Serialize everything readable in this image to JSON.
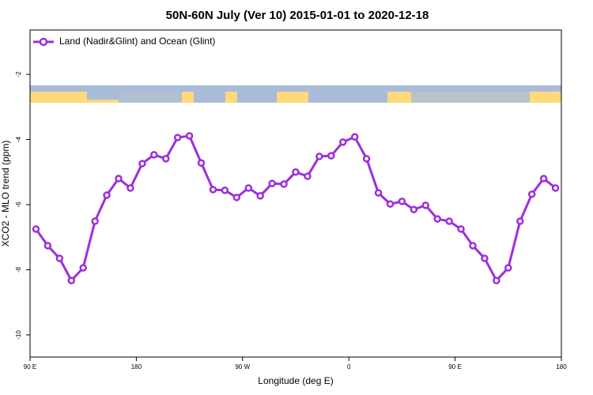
{
  "chart_data": {
    "type": "line",
    "title": "50N-60N July (Ver 10)   2015-01-01 to 2020-12-18",
    "x_label": "Longitude (deg E)",
    "y_label": "XCO2 - MLO trend (ppm)",
    "x": [
      95,
      105,
      115,
      125,
      135,
      145,
      155,
      165,
      175,
      185,
      195,
      205,
      215,
      225,
      235,
      245,
      255,
      265,
      275,
      285,
      295,
      305,
      315,
      325,
      335,
      345,
      355,
      365,
      375,
      385,
      395,
      405,
      415,
      425,
      435,
      445,
      455,
      465,
      475,
      485,
      495,
      505,
      515,
      525,
      535
    ],
    "series": [
      {
        "name": "Land (Nadir&Glint) and Ocean (Glint)",
        "color": "#9b30d9",
        "values": [
          -6.75,
          -7.26,
          -7.65,
          -8.33,
          -7.94,
          -6.51,
          -5.71,
          -5.2,
          -5.49,
          -4.74,
          -4.47,
          -4.59,
          -3.94,
          -3.89,
          -4.72,
          -5.54,
          -5.56,
          -5.78,
          -5.49,
          -5.73,
          -5.35,
          -5.37,
          -5.0,
          -5.13,
          -4.52,
          -4.5,
          -4.08,
          -3.92,
          -4.59,
          -5.64,
          -5.98,
          -5.9,
          -6.15,
          -6.02,
          -6.44,
          -6.51,
          -6.75,
          -7.26,
          -7.65,
          -8.33,
          -7.94,
          -6.51,
          -5.68,
          -5.2,
          -5.49
        ]
      }
    ],
    "xlim": [
      90,
      540
    ],
    "xticks": [
      {
        "value": 90,
        "label": "90 E"
      },
      {
        "value": 180,
        "label": "180"
      },
      {
        "value": 270,
        "label": "90 W"
      },
      {
        "value": 360,
        "label": "0"
      },
      {
        "value": 450,
        "label": "90 E"
      },
      {
        "value": 540,
        "label": "180"
      }
    ],
    "ylim": [
      -10.68,
      -0.64
    ],
    "yticks": [
      -2,
      -4,
      -6,
      -8,
      -10
    ],
    "legend": "top-left"
  }
}
